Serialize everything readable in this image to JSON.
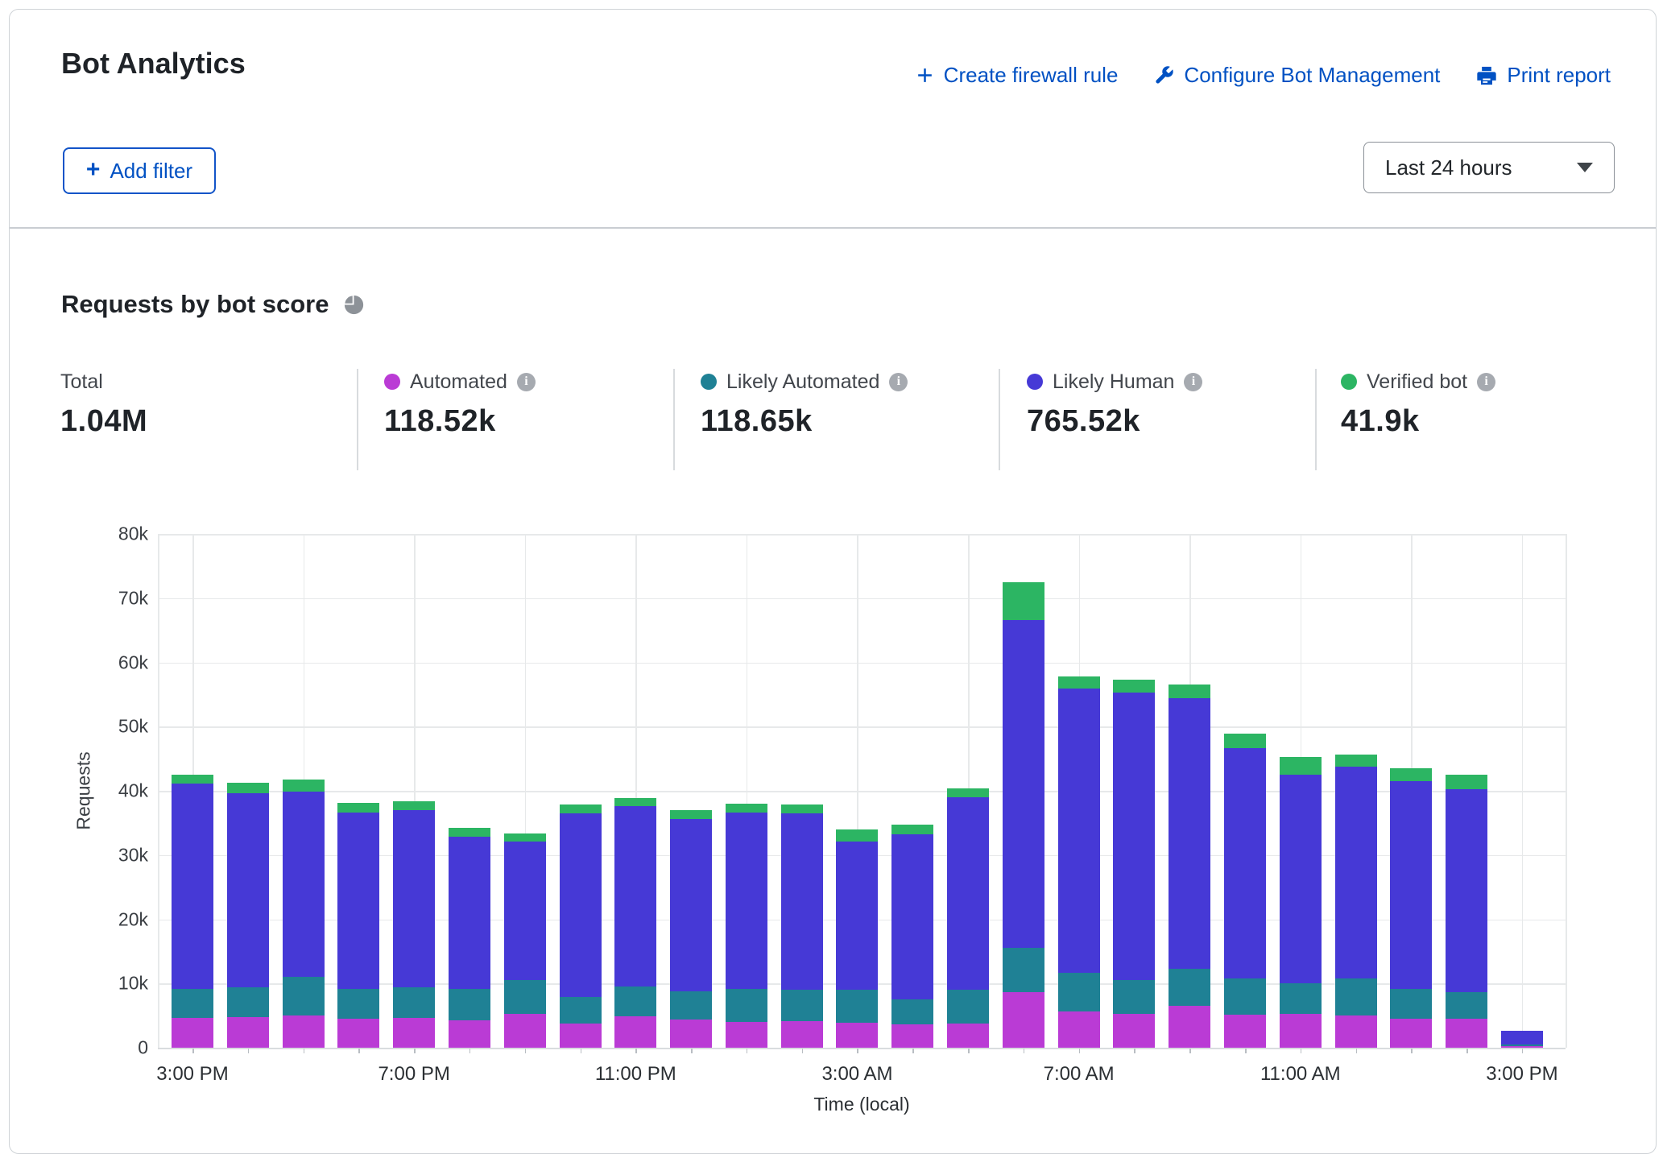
{
  "header": {
    "title": "Bot Analytics",
    "actions": [
      {
        "label": "Create firewall rule",
        "icon": "plus-icon"
      },
      {
        "label": "Configure Bot Management",
        "icon": "wrench-icon"
      },
      {
        "label": "Print report",
        "icon": "printer-icon"
      }
    ]
  },
  "toolbar": {
    "add_filter_label": "Add filter",
    "time_range_value": "Last 24 hours"
  },
  "section": {
    "title": "Requests by bot score",
    "total_label": "Total",
    "total_value": "1.04M"
  },
  "legend": [
    {
      "label": "Automated",
      "value": "118.52k",
      "color": "#ba3bd5"
    },
    {
      "label": "Likely Automated",
      "value": "118.65k",
      "color": "#1f8195"
    },
    {
      "label": "Likely Human",
      "value": "765.52k",
      "color": "#4639d6"
    },
    {
      "label": "Verified bot",
      "value": "41.9k",
      "color": "#2cb563"
    }
  ],
  "colors": {
    "link_blue": "#0051c3",
    "grid": "#e7e9ea",
    "text_dark": "#1f2328"
  },
  "chart_data": {
    "type": "bar",
    "stacked": true,
    "title": "Requests by bot score",
    "xlabel": "Time (local)",
    "ylabel": "Requests",
    "unit": "thousands of requests",
    "ylim_k": [
      0,
      80
    ],
    "ytick_step_k": 10,
    "grid": true,
    "xtick_label_every": 4,
    "categories": [
      "3:00 PM",
      "4:00 PM",
      "5:00 PM",
      "6:00 PM",
      "7:00 PM",
      "8:00 PM",
      "9:00 PM",
      "10:00 PM",
      "11:00 PM",
      "12:00 AM",
      "1:00 AM",
      "2:00 AM",
      "3:00 AM",
      "4:00 AM",
      "5:00 AM",
      "6:00 AM",
      "7:00 AM",
      "8:00 AM",
      "9:00 AM",
      "10:00 AM",
      "11:00 AM",
      "12:00 PM",
      "1:00 PM",
      "2:00 PM",
      "3:00 PM"
    ],
    "series": [
      {
        "name": "Automated",
        "color": "#ba3bd5",
        "values_k": [
          4.7,
          4.8,
          5.0,
          4.5,
          4.7,
          4.3,
          5.3,
          3.8,
          4.9,
          4.4,
          4.0,
          4.2,
          3.9,
          3.7,
          3.8,
          8.6,
          5.7,
          5.3,
          6.5,
          5.1,
          5.3,
          5.0,
          4.5,
          4.5,
          0.3
        ]
      },
      {
        "name": "Likely Automated",
        "color": "#1f8195",
        "values_k": [
          4.5,
          4.6,
          6.0,
          4.6,
          4.7,
          4.8,
          5.2,
          4.1,
          4.6,
          4.4,
          5.1,
          4.8,
          5.1,
          3.8,
          5.2,
          6.9,
          6.0,
          5.2,
          5.8,
          5.7,
          4.7,
          5.8,
          4.7,
          4.2,
          0.25
        ]
      },
      {
        "name": "Likely Human",
        "color": "#4639d6",
        "values_k": [
          31.9,
          30.2,
          28.9,
          27.5,
          27.6,
          23.8,
          21.6,
          28.6,
          28.1,
          26.8,
          27.5,
          27.5,
          23.1,
          25.7,
          30.0,
          51.1,
          44.2,
          44.8,
          42.1,
          35.8,
          32.5,
          33.0,
          32.3,
          31.6,
          2.05
        ]
      },
      {
        "name": "Verified bot",
        "color": "#2cb563",
        "values_k": [
          1.4,
          1.6,
          1.8,
          1.5,
          1.4,
          1.4,
          1.3,
          1.4,
          1.3,
          1.4,
          1.4,
          1.4,
          1.9,
          1.5,
          1.4,
          5.9,
          1.9,
          2.0,
          2.2,
          2.3,
          2.8,
          1.8,
          2.0,
          2.2,
          0.05
        ]
      }
    ]
  }
}
